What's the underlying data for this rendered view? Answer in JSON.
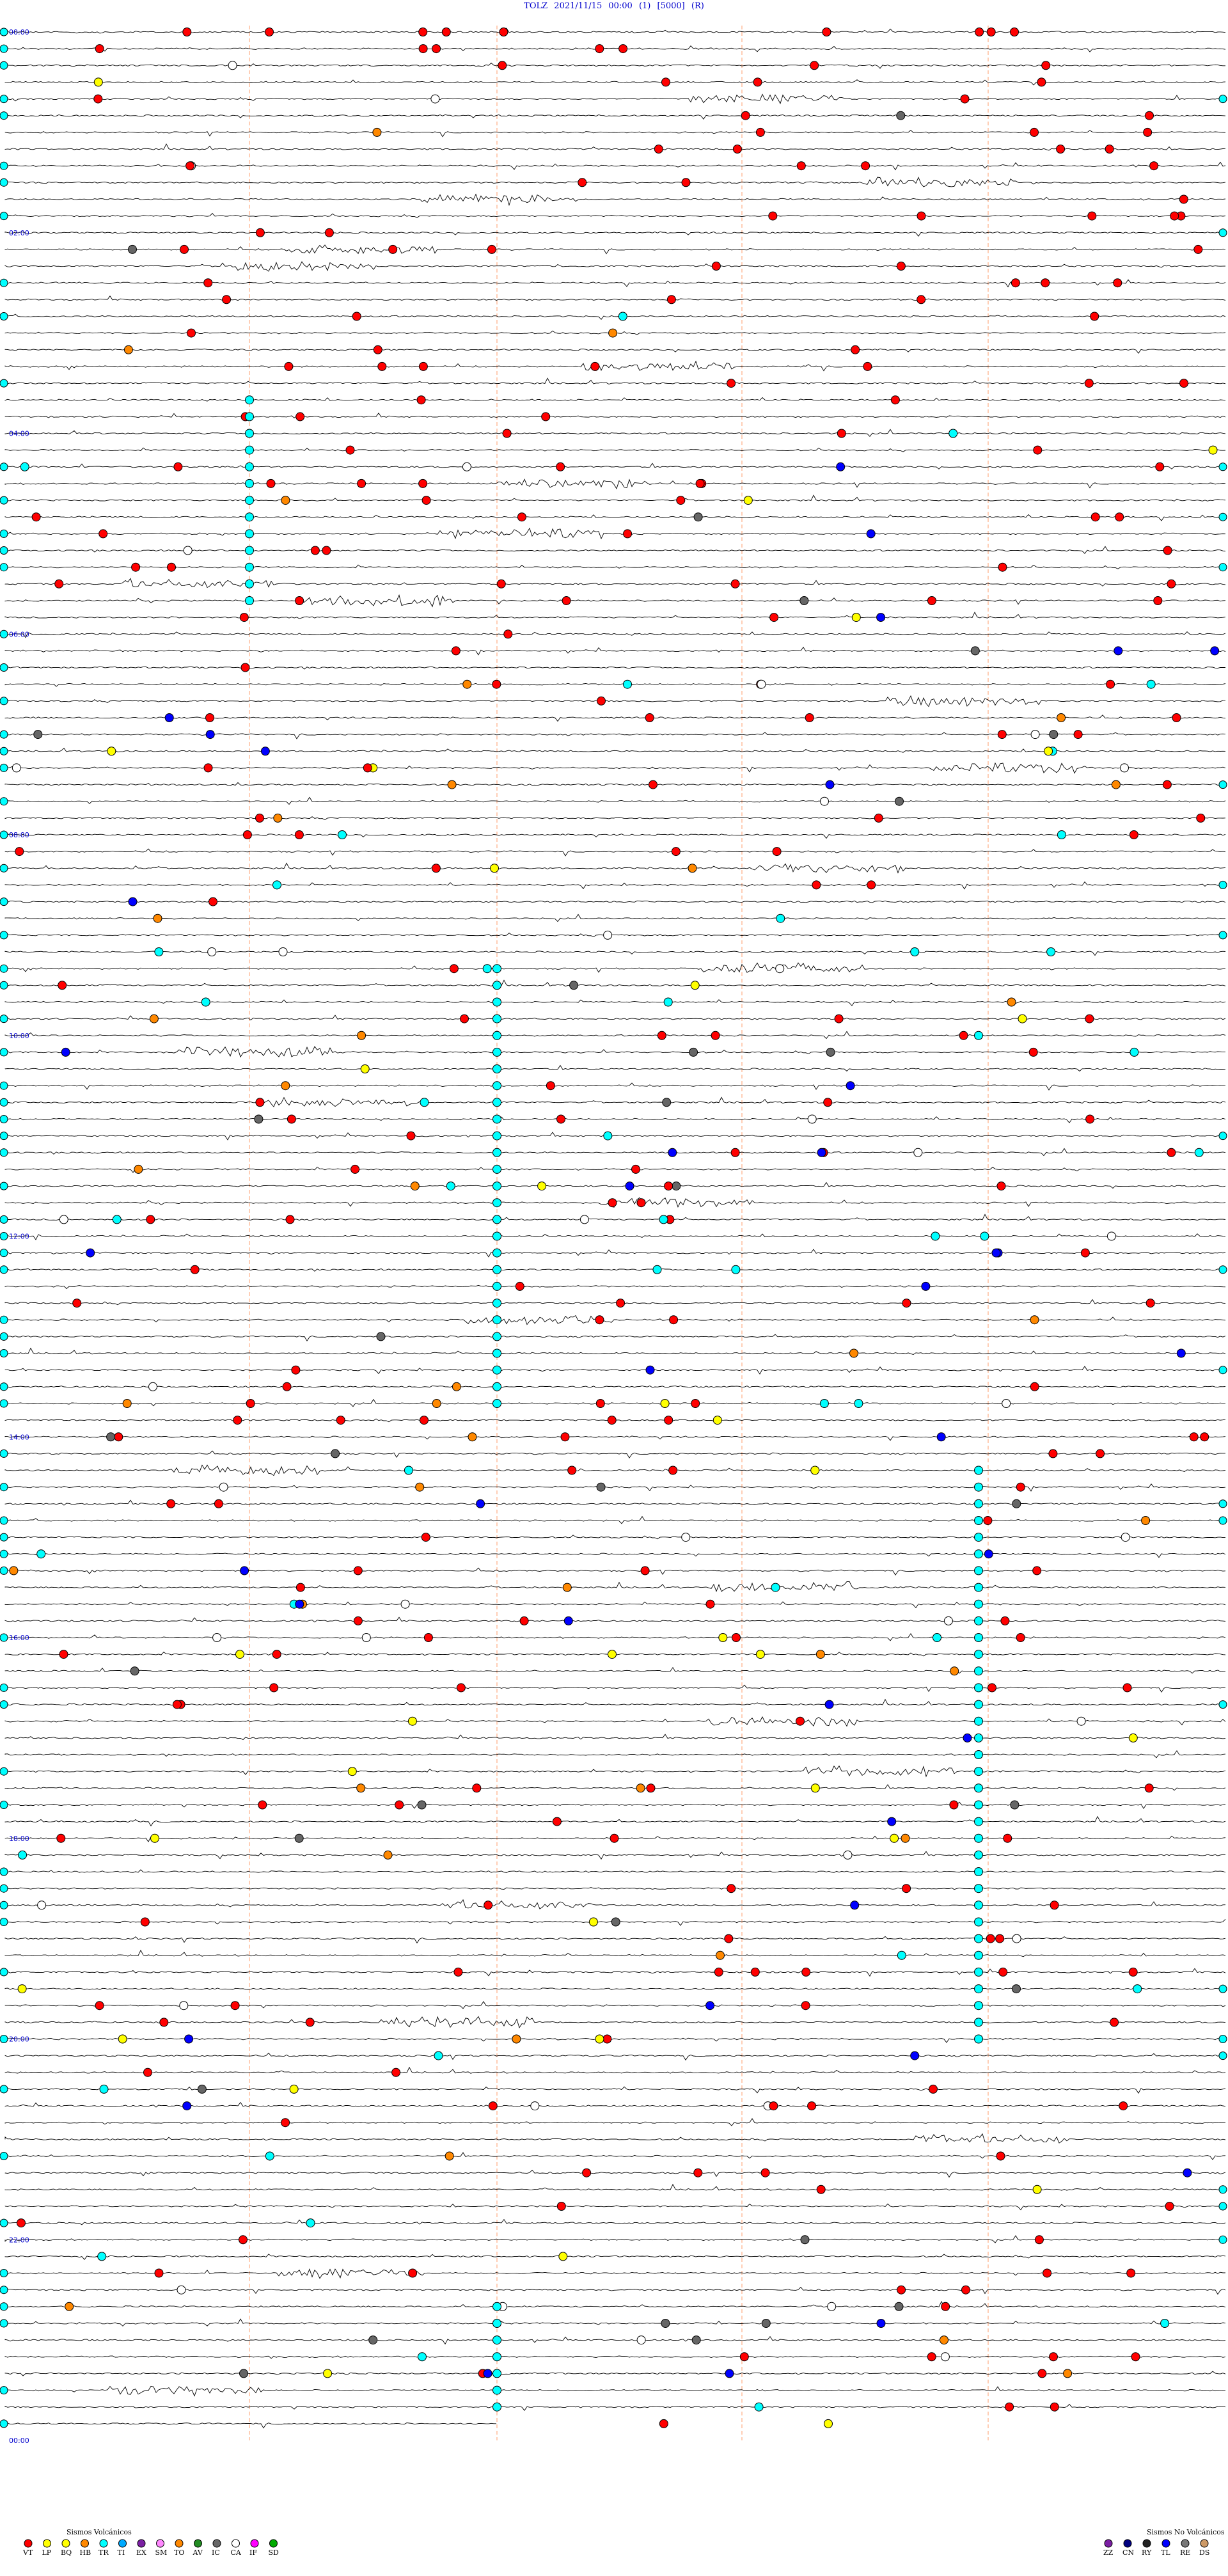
{
  "header": {
    "station": "TOLZ",
    "datetime": "2021/11/15 00:00",
    "mode": "(1)",
    "scale": "[5000]",
    "flag": "(R)"
  },
  "chart_data": {
    "type": "helicorder",
    "traces_per_hour": 6,
    "hours": 24,
    "hour_labels": [
      "00:00",
      "02:00",
      "04:00",
      "06:00",
      "08:00",
      "10:00",
      "12:00",
      "14:00",
      "16:00",
      "18:00",
      "20:00",
      "22:00",
      "00:00"
    ],
    "grid": true,
    "legend_volcanic": {
      "title": "Sismos Volcánicos",
      "items": [
        {
          "code": "VT",
          "color": "#ff0000"
        },
        {
          "code": "LP",
          "color": "#ffff00"
        },
        {
          "code": "BQ",
          "color": "#ffff00"
        },
        {
          "code": "HB",
          "color": "#ff8800"
        },
        {
          "code": "TR",
          "color": "#00ffff"
        },
        {
          "code": "TI",
          "color": "#00aaff"
        },
        {
          "code": "EX",
          "color": "#7a1fa2"
        },
        {
          "code": "SM",
          "color": "#ff88ff"
        },
        {
          "code": "TO",
          "color": "#ff8800"
        },
        {
          "code": "AV",
          "color": "#228b22"
        },
        {
          "code": "IC",
          "color": "#666666"
        },
        {
          "code": "CA",
          "color": "#ffffff"
        },
        {
          "code": "IF",
          "color": "#ff00ff"
        },
        {
          "code": "SD",
          "color": "#00aa00"
        }
      ]
    },
    "legend_nonvolcanic": {
      "title": "Sismos No Volcánicos",
      "items": [
        {
          "code": "ZZ",
          "color": "#7a1fa2"
        },
        {
          "code": "CN",
          "color": "#000080"
        },
        {
          "code": "RY",
          "color": "#222222"
        },
        {
          "code": "TL",
          "color": "#0000ff"
        },
        {
          "code": "RE",
          "color": "#777777"
        },
        {
          "code": "DS",
          "color": "#cc9966"
        }
      ]
    },
    "colors": {
      "trace": "#000000",
      "hour_label": "#0000cc",
      "marker_line": "#ff9966"
    }
  }
}
